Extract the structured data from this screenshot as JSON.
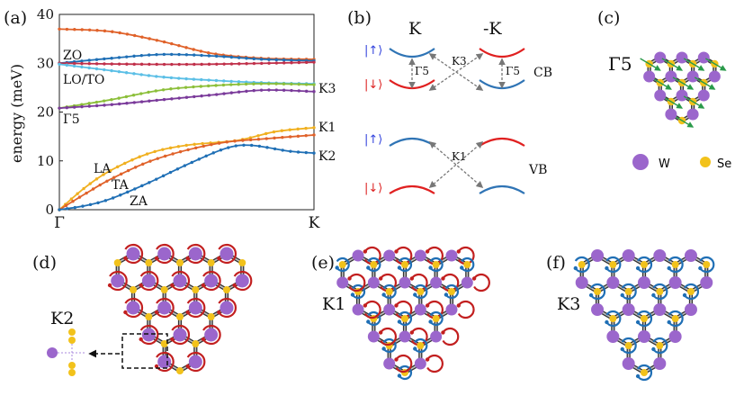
{
  "panels": {
    "a": {
      "label": "(a)",
      "ylabel": "energy (meV)",
      "yticks": [
        "0",
        "10",
        "20",
        "30",
        "40"
      ],
      "xticks": [
        "Γ",
        "K"
      ],
      "curve_labels": [
        "ZO",
        "LO/TO",
        "Γ5",
        "LA",
        "TA",
        "ZA"
      ],
      "right_labels": [
        "K3",
        "K1",
        "K2"
      ]
    },
    "b": {
      "label": "(b)",
      "valley_left": "K",
      "valley_right": "-K",
      "spin_up": "|↑⟩",
      "spin_down": "|↓⟩",
      "band_cb": "CB",
      "band_vb": "VB",
      "transitions": [
        "Γ5",
        "K3",
        "Γ5",
        "K1"
      ]
    },
    "c": {
      "label": "(c)",
      "mode": "Γ5",
      "legend": [
        {
          "name": "W",
          "color": "#9b66cc"
        },
        {
          "name": "Se",
          "color": "#f2c21b"
        }
      ]
    },
    "d": {
      "label": "(d)",
      "mode": "K2"
    },
    "e": {
      "label": "(e)",
      "mode": "K1"
    },
    "f": {
      "label": "(f)",
      "mode": "K3"
    }
  },
  "colors": {
    "W": "#9b66cc",
    "Se": "#f2c21b",
    "blue_arrow": "#1f6fb5",
    "red_arrow": "#c21f1f",
    "green_arrow": "#2a9a4a",
    "cb_blue": "#2f74b5",
    "cb_red": "#e02020",
    "spin_up": "#3344dd",
    "spin_down": "#dd2222"
  },
  "chart_data": {
    "type": "line",
    "x": [
      "Γ",
      "K"
    ],
    "xlim": [
      0,
      1
    ],
    "ylabel": "energy (meV)",
    "ylim": [
      0,
      40
    ],
    "series": [
      {
        "name": "ZO",
        "color": "#e0622a",
        "values": [
          [
            0,
            37
          ],
          [
            0.2,
            36.5
          ],
          [
            0.4,
            34.5
          ],
          [
            0.6,
            32
          ],
          [
            0.8,
            31
          ],
          [
            1,
            30.8
          ]
        ]
      },
      {
        "name": "LO/TO",
        "color": "#1f6fb5",
        "values": [
          [
            0,
            30
          ],
          [
            0.2,
            31
          ],
          [
            0.4,
            31.8
          ],
          [
            0.6,
            31.5
          ],
          [
            0.8,
            30.8
          ],
          [
            1,
            30.5
          ]
        ]
      },
      {
        "color": "#c0304a",
        "values": [
          [
            0,
            30
          ],
          [
            0.3,
            29.8
          ],
          [
            0.6,
            29.8
          ],
          [
            1,
            30.2
          ]
        ]
      },
      {
        "color": "#5bbfe6",
        "values": [
          [
            0,
            29.8
          ],
          [
            0.2,
            28.5
          ],
          [
            0.4,
            27.2
          ],
          [
            0.6,
            26.5
          ],
          [
            0.8,
            26
          ],
          [
            1,
            25.8
          ]
        ]
      },
      {
        "color": "#8cbf3a",
        "values": [
          [
            0,
            20.8
          ],
          [
            0.2,
            22.5
          ],
          [
            0.4,
            24.5
          ],
          [
            0.6,
            25.4
          ],
          [
            0.8,
            25.8
          ],
          [
            1,
            25.6
          ]
        ]
      },
      {
        "color": "#7a3a9a",
        "values": [
          [
            0,
            20.8
          ],
          [
            0.2,
            21.5
          ],
          [
            0.4,
            22.5
          ],
          [
            0.6,
            23.5
          ],
          [
            0.8,
            24.5
          ],
          [
            1,
            24.2
          ]
        ]
      },
      {
        "name": "LA",
        "color": "#f0b020",
        "values": [
          [
            0,
            0
          ],
          [
            0.1,
            4.5
          ],
          [
            0.2,
            8
          ],
          [
            0.35,
            11.5
          ],
          [
            0.5,
            13.2
          ],
          [
            0.7,
            14.2
          ],
          [
            0.85,
            16
          ],
          [
            1,
            16.8
          ]
        ]
      },
      {
        "name": "TA",
        "color": "#e0622a",
        "values": [
          [
            0,
            0
          ],
          [
            0.1,
            3.2
          ],
          [
            0.2,
            6.2
          ],
          [
            0.35,
            9.8
          ],
          [
            0.5,
            12.2
          ],
          [
            0.65,
            13.8
          ],
          [
            0.8,
            14.5
          ],
          [
            1,
            15.3
          ]
        ]
      },
      {
        "name": "ZA",
        "color": "#1f6fb5",
        "values": [
          [
            0,
            0
          ],
          [
            0.1,
            0.8
          ],
          [
            0.2,
            2.2
          ],
          [
            0.35,
            5.5
          ],
          [
            0.5,
            9.2
          ],
          [
            0.65,
            12.5
          ],
          [
            0.75,
            13.2
          ],
          [
            0.9,
            12
          ],
          [
            1,
            11.6
          ]
        ]
      }
    ]
  }
}
